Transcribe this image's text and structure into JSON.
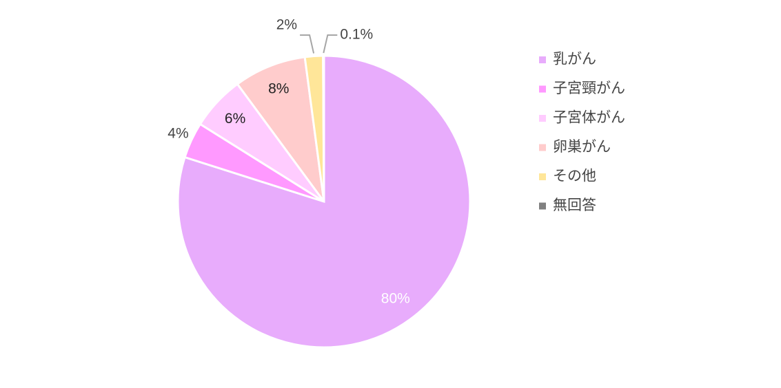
{
  "chart_data": {
    "type": "pie",
    "categories": [
      "乳がん",
      "子宮頸がん",
      "子宮体がん",
      "卵巣がん",
      "その他",
      "無回答"
    ],
    "values": [
      80,
      4,
      6,
      8,
      2,
      0.1
    ],
    "value_labels": [
      "80%",
      "4%",
      "6%",
      "8%",
      "2%",
      "0.1%"
    ],
    "colors": [
      "#e8acfc",
      "#ff99ff",
      "#ffccff",
      "#ffcccc",
      "#ffe699",
      "#808080"
    ],
    "legend": "right"
  }
}
